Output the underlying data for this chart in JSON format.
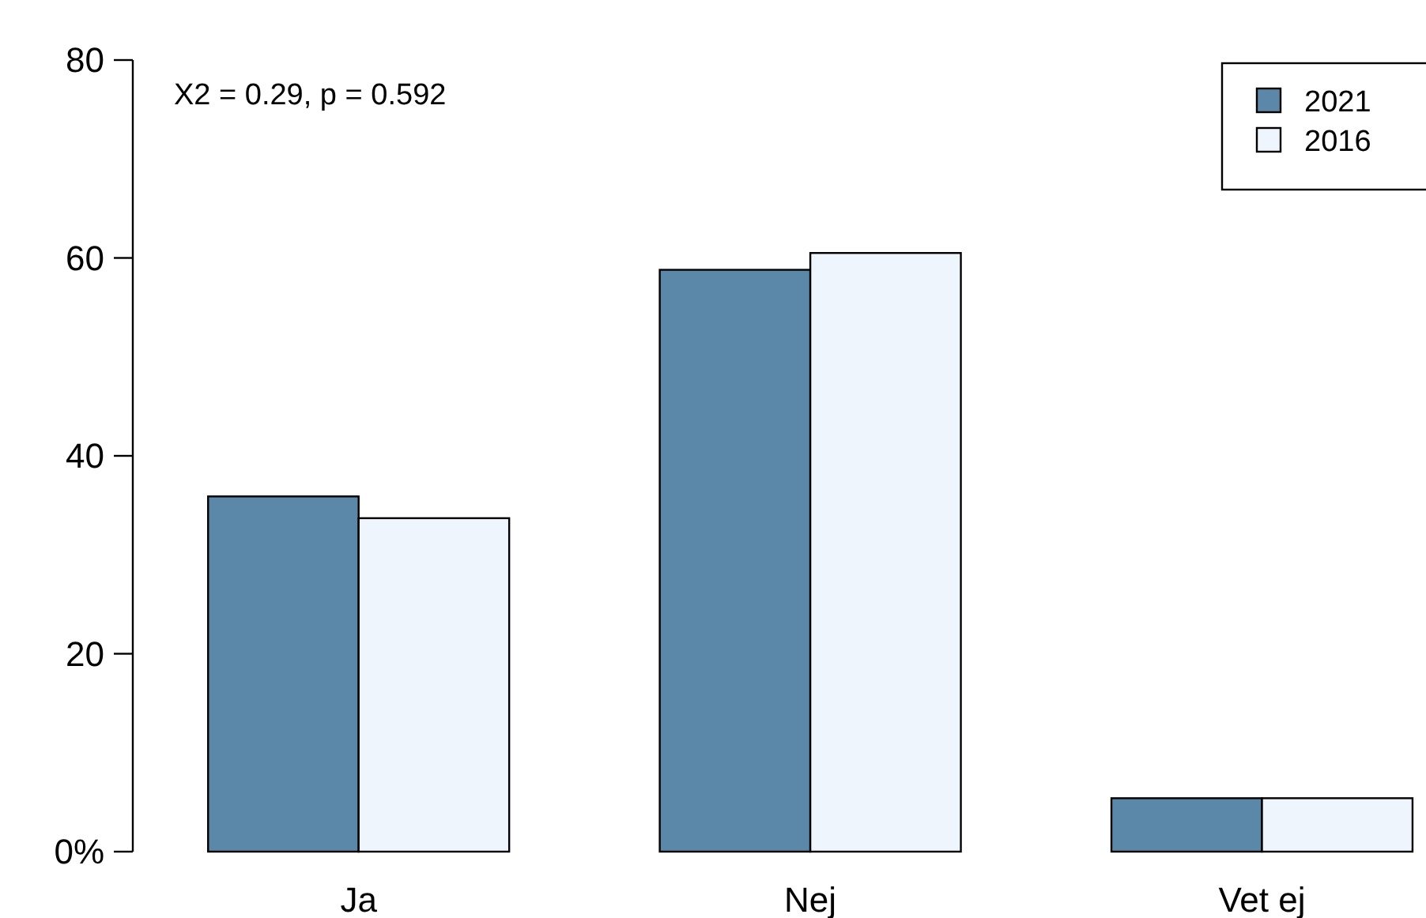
{
  "chart_data": {
    "type": "bar",
    "categories": [
      "Ja",
      "Nej",
      "Vet ej"
    ],
    "series": [
      {
        "name": "2021",
        "color": "#5b88a8",
        "values": [
          35.9,
          58.8,
          5.4
        ]
      },
      {
        "name": "2016",
        "color": "#eef5fc",
        "values": [
          33.7,
          60.5,
          5.4
        ]
      }
    ],
    "ylim": [
      0,
      80
    ],
    "yticks": [
      {
        "value": 0,
        "label": "0%"
      },
      20,
      40,
      60,
      80
    ],
    "annotations": [
      "X2 = 0.29, p = 0.592"
    ],
    "legend": "top right",
    "grid": false
  }
}
